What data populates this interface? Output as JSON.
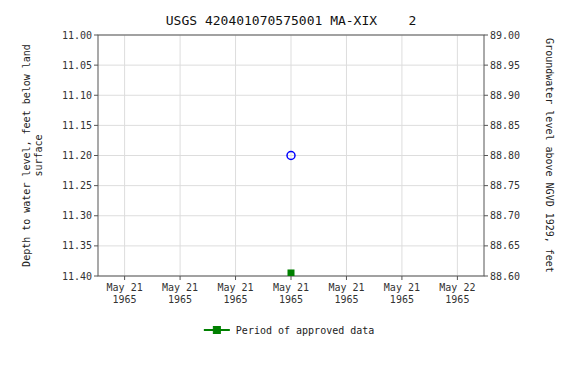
{
  "chart_data": {
    "type": "scatter",
    "title": "USGS 420401070575001 MA-XIX    2",
    "y_label": "Depth to water level, feet below land\nsurface",
    "y2_label": "Groundwater level above NGVD 1929, feet",
    "categories": [
      "May 21\n1965",
      "May 21\n1965",
      "May 21\n1965",
      "May 21\n1965",
      "May 21\n1965",
      "May 21\n1965",
      "May 22\n1965"
    ],
    "series": [
      {
        "color": "blue",
        "marker": "circle",
        "values": [
          null,
          null,
          null,
          11.2,
          null,
          null,
          null
        ]
      },
      {
        "name": "Period of approved data",
        "color": "#008000",
        "marker": "square",
        "values": [
          null,
          null,
          null,
          11.395,
          null,
          null,
          null
        ]
      }
    ],
    "ylim": [
      11.4,
      11.0
    ],
    "yticks": [
      {
        "value": 11.0,
        "label": "11.00"
      },
      11.05,
      {
        "value": 11.1,
        "label": "11.10"
      },
      11.15,
      {
        "value": 11.2,
        "label": "11.20"
      },
      11.25,
      {
        "value": 11.3,
        "label": "11.30"
      },
      11.35,
      {
        "value": 11.4,
        "label": "11.40"
      }
    ],
    "y2lim": [
      88.6,
      89.0
    ],
    "y2ticks": [
      {
        "value": 89.0,
        "label": "89.00"
      },
      88.95,
      {
        "value": 88.9,
        "label": "88.90"
      },
      88.85,
      {
        "value": 88.8,
        "label": "88.80"
      },
      88.75,
      {
        "value": 88.7,
        "label": "88.70"
      },
      88.65,
      {
        "value": 88.6,
        "label": "88.60"
      }
    ],
    "grid": true,
    "legend": "bottom"
  }
}
